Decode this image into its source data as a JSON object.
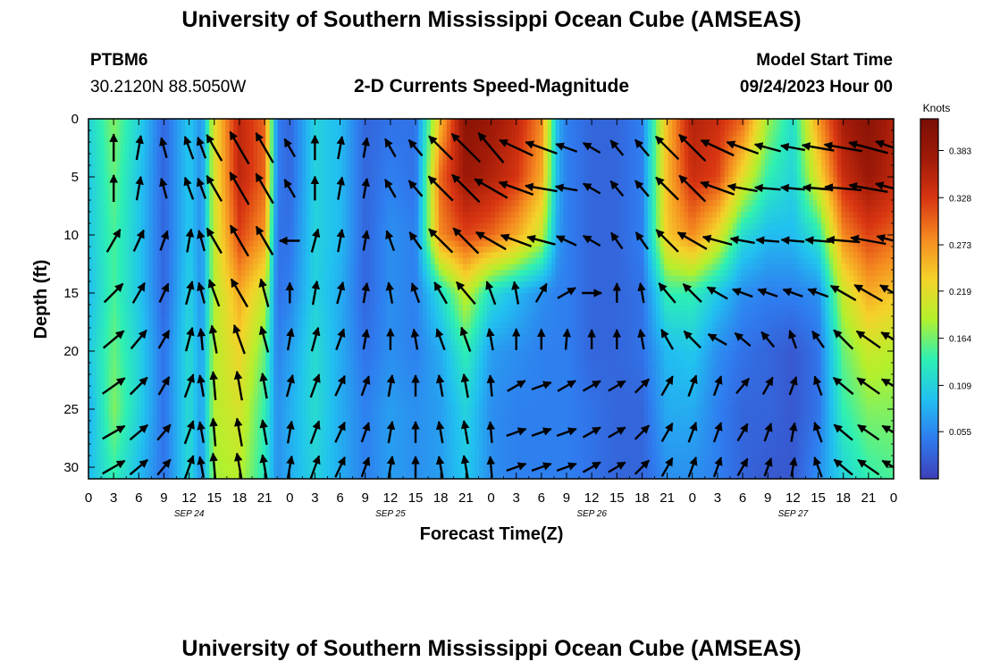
{
  "header": {
    "title": "University of Southern Mississippi Ocean Cube (AMSEAS)",
    "station": "PTBM6",
    "coords": "30.2120N  88.5050W",
    "plot_title": "2-D Currents Speed-Magnitude",
    "start_label": "Model Start Time",
    "start_value": "09/24/2023 Hour 00"
  },
  "footer": {
    "title": "University of Southern Mississippi Ocean Cube (AMSEAS)"
  },
  "chart_data": {
    "type": "heatmap",
    "xlabel": "Forecast Time(Z)",
    "ylabel": "Depth (ft)",
    "xlim": [
      0,
      96
    ],
    "ylim": [
      0,
      31
    ],
    "x_ticks": [
      0,
      3,
      6,
      9,
      12,
      15,
      18,
      21,
      24,
      27,
      30,
      33,
      36,
      39,
      42,
      45,
      48,
      51,
      54,
      57,
      60,
      63,
      66,
      69,
      72,
      75,
      78,
      81,
      84,
      87,
      90,
      93,
      96
    ],
    "x_tick_labels": [
      "0",
      "3",
      "6",
      "9",
      "12",
      "15",
      "18",
      "21",
      "0",
      "3",
      "6",
      "9",
      "12",
      "15",
      "18",
      "21",
      "0",
      "3",
      "6",
      "9",
      "12",
      "15",
      "18",
      "21",
      "0",
      "3",
      "6",
      "9",
      "12",
      "15",
      "18",
      "21",
      "0"
    ],
    "date_labels": [
      {
        "x": 12,
        "label": "SEP 24"
      },
      {
        "x": 36,
        "label": "SEP 25"
      },
      {
        "x": 60,
        "label": "SEP 26"
      },
      {
        "x": 84,
        "label": "SEP 27"
      }
    ],
    "y_ticks": [
      0,
      5,
      10,
      15,
      20,
      25,
      30
    ],
    "y_tick_labels": [
      "0",
      "5",
      "10",
      "15",
      "20",
      "25",
      "30"
    ],
    "colorbar": {
      "label": "Knots",
      "min": 0,
      "max": 0.42,
      "ticks": [
        0.055,
        0.109,
        0.164,
        0.219,
        0.273,
        0.328,
        0.383
      ],
      "tick_labels": [
        "0.055",
        "0.109",
        "0.164",
        "0.219",
        "0.273",
        "0.328",
        "0.383"
      ],
      "colors": [
        "#3e3fb8",
        "#2f7bef",
        "#21c1f0",
        "#2ef0b3",
        "#b4f02c",
        "#f5d22a",
        "#f58a20",
        "#d93612",
        "#a01a08",
        "#7a0e05"
      ]
    },
    "speed_profile": {
      "times": [
        0,
        3,
        6,
        9,
        12,
        13.5,
        15,
        18,
        21,
        22.5,
        24,
        27,
        30,
        33,
        36,
        39,
        42,
        45,
        48,
        51,
        54,
        56,
        57,
        60,
        63,
        66,
        69,
        72,
        75,
        78,
        81,
        84,
        87,
        90,
        93,
        96
      ],
      "depths": [
        0,
        5,
        10,
        15,
        20,
        25,
        31
      ],
      "values": [
        [
          0.11,
          0.1,
          0.1,
          0.09,
          0.1,
          0.08,
          0.09
        ],
        [
          0.17,
          0.16,
          0.15,
          0.15,
          0.16,
          0.17,
          0.14
        ],
        [
          0.11,
          0.1,
          0.1,
          0.1,
          0.11,
          0.11,
          0.09
        ],
        [
          0.03,
          0.03,
          0.03,
          0.03,
          0.04,
          0.04,
          0.04
        ],
        [
          0.1,
          0.1,
          0.1,
          0.11,
          0.12,
          0.12,
          0.12
        ],
        [
          0.06,
          0.06,
          0.06,
          0.06,
          0.07,
          0.07,
          0.06
        ],
        [
          0.22,
          0.21,
          0.2,
          0.19,
          0.19,
          0.19,
          0.18
        ],
        [
          0.35,
          0.35,
          0.32,
          0.26,
          0.23,
          0.21,
          0.19
        ],
        [
          0.3,
          0.3,
          0.27,
          0.2,
          0.16,
          0.14,
          0.13
        ],
        [
          0.05,
          0.05,
          0.04,
          0.04,
          0.05,
          0.06,
          0.06
        ],
        [
          0.03,
          0.03,
          0.04,
          0.05,
          0.07,
          0.08,
          0.08
        ],
        [
          0.11,
          0.11,
          0.11,
          0.11,
          0.12,
          0.12,
          0.11
        ],
        [
          0.09,
          0.09,
          0.09,
          0.08,
          0.08,
          0.08,
          0.08
        ],
        [
          0.03,
          0.03,
          0.03,
          0.03,
          0.04,
          0.05,
          0.05
        ],
        [
          0.04,
          0.05,
          0.06,
          0.06,
          0.06,
          0.07,
          0.07
        ],
        [
          0.04,
          0.04,
          0.05,
          0.05,
          0.05,
          0.06,
          0.06
        ],
        [
          0.25,
          0.3,
          0.28,
          0.12,
          0.08,
          0.07,
          0.07
        ],
        [
          0.4,
          0.38,
          0.32,
          0.2,
          0.14,
          0.11,
          0.1
        ],
        [
          0.38,
          0.36,
          0.3,
          0.12,
          0.07,
          0.06,
          0.06
        ],
        [
          0.35,
          0.33,
          0.26,
          0.09,
          0.06,
          0.05,
          0.05
        ],
        [
          0.28,
          0.26,
          0.2,
          0.06,
          0.05,
          0.05,
          0.05
        ],
        [
          0.08,
          0.08,
          0.07,
          0.05,
          0.05,
          0.05,
          0.05
        ],
        [
          0.05,
          0.05,
          0.05,
          0.05,
          0.05,
          0.05,
          0.05
        ],
        [
          0.03,
          0.03,
          0.03,
          0.03,
          0.03,
          0.04,
          0.04
        ],
        [
          0.03,
          0.03,
          0.03,
          0.03,
          0.03,
          0.03,
          0.03
        ],
        [
          0.05,
          0.05,
          0.05,
          0.04,
          0.04,
          0.03,
          0.03
        ],
        [
          0.25,
          0.25,
          0.24,
          0.14,
          0.09,
          0.08,
          0.06
        ],
        [
          0.36,
          0.34,
          0.28,
          0.14,
          0.1,
          0.08,
          0.06
        ],
        [
          0.34,
          0.32,
          0.22,
          0.1,
          0.06,
          0.05,
          0.05
        ],
        [
          0.3,
          0.22,
          0.12,
          0.06,
          0.04,
          0.03,
          0.03
        ],
        [
          0.18,
          0.14,
          0.09,
          0.05,
          0.03,
          0.03,
          0.02
        ],
        [
          0.12,
          0.11,
          0.09,
          0.05,
          0.02,
          0.02,
          0.02
        ],
        [
          0.27,
          0.22,
          0.13,
          0.06,
          0.04,
          0.04,
          0.06
        ],
        [
          0.37,
          0.34,
          0.28,
          0.2,
          0.16,
          0.14,
          0.11
        ],
        [
          0.4,
          0.38,
          0.32,
          0.26,
          0.2,
          0.17,
          0.14
        ],
        [
          0.36,
          0.35,
          0.3,
          0.24,
          0.19,
          0.17,
          0.15
        ]
      ]
    },
    "vectors": {
      "times": [
        3,
        6,
        9,
        12,
        13.5,
        15,
        18,
        21,
        24,
        27,
        30,
        33,
        36,
        39,
        42,
        45,
        48,
        51,
        54,
        57,
        60,
        63,
        66,
        69,
        72,
        75,
        78,
        81,
        84,
        87,
        90,
        93,
        96
      ],
      "depths": [
        2.5,
        6,
        10.5,
        15,
        19,
        23,
        27,
        30
      ],
      "directions_deg": [
        [
          0,
          10,
          -15,
          -20,
          -20,
          -30,
          -30,
          -30,
          -30,
          0,
          10,
          10,
          -30,
          -40,
          -45,
          -45,
          -40,
          -65,
          -70,
          -70,
          -60,
          -40,
          -40,
          -45,
          -45,
          -65,
          -70,
          -75,
          -80,
          -80,
          -80,
          -75,
          -70
        ],
        [
          0,
          10,
          -15,
          -20,
          -20,
          -30,
          -30,
          -30,
          -30,
          0,
          10,
          10,
          -30,
          -40,
          -45,
          -45,
          -60,
          -70,
          -80,
          -80,
          -60,
          -40,
          -40,
          -45,
          -45,
          -70,
          -80,
          -85,
          -85,
          -85,
          -85,
          -80,
          -75
        ],
        [
          30,
          25,
          20,
          10,
          -15,
          -30,
          -30,
          -30,
          -90,
          15,
          10,
          10,
          -20,
          -35,
          -45,
          -45,
          -60,
          -70,
          -75,
          -65,
          -60,
          -35,
          -35,
          -45,
          -60,
          -75,
          -80,
          -85,
          -85,
          -85,
          -85,
          -80,
          -75
        ],
        [
          45,
          30,
          25,
          15,
          -15,
          -20,
          -30,
          -15,
          0,
          10,
          15,
          10,
          -10,
          -20,
          -30,
          -40,
          -20,
          -10,
          30,
          60,
          90,
          0,
          -10,
          -40,
          -45,
          -60,
          -70,
          -70,
          -70,
          -70,
          -60,
          -60,
          -60
        ],
        [
          50,
          40,
          30,
          15,
          -5,
          -10,
          -20,
          -15,
          10,
          15,
          20,
          10,
          0,
          -10,
          -20,
          -20,
          -10,
          0,
          0,
          5,
          0,
          0,
          -10,
          -30,
          -45,
          -60,
          -50,
          -40,
          -20,
          -35,
          -45,
          -55,
          -60
        ],
        [
          55,
          45,
          30,
          20,
          -10,
          -5,
          -10,
          -10,
          15,
          20,
          25,
          20,
          10,
          0,
          -10,
          -10,
          -5,
          60,
          70,
          60,
          60,
          60,
          45,
          30,
          20,
          20,
          40,
          30,
          20,
          -20,
          -50,
          -55,
          -60
        ],
        [
          60,
          50,
          40,
          20,
          -10,
          -5,
          -10,
          -10,
          10,
          20,
          25,
          20,
          10,
          0,
          -10,
          -10,
          -5,
          70,
          70,
          70,
          60,
          60,
          45,
          30,
          20,
          20,
          30,
          20,
          10,
          -20,
          -50,
          -55,
          -60
        ],
        [
          60,
          50,
          40,
          20,
          -10,
          -5,
          -10,
          -10,
          10,
          20,
          25,
          20,
          10,
          0,
          -10,
          -10,
          -5,
          70,
          70,
          70,
          60,
          60,
          45,
          30,
          20,
          20,
          30,
          20,
          10,
          -20,
          -50,
          -55,
          -60
        ]
      ],
      "magnitudes": [
        [
          0.17,
          0.12,
          0.05,
          0.11,
          0.08,
          0.22,
          0.35,
          0.3,
          0.05,
          0.12,
          0.09,
          0.04,
          0.05,
          0.05,
          0.28,
          0.4,
          0.38,
          0.34,
          0.28,
          0.08,
          0.03,
          0.03,
          0.06,
          0.26,
          0.35,
          0.33,
          0.28,
          0.16,
          0.12,
          0.26,
          0.37,
          0.4,
          0.36
        ],
        [
          0.16,
          0.11,
          0.05,
          0.1,
          0.07,
          0.21,
          0.35,
          0.3,
          0.05,
          0.11,
          0.09,
          0.04,
          0.05,
          0.05,
          0.3,
          0.38,
          0.36,
          0.33,
          0.26,
          0.08,
          0.03,
          0.03,
          0.05,
          0.25,
          0.34,
          0.32,
          0.22,
          0.14,
          0.11,
          0.22,
          0.34,
          0.38,
          0.35
        ],
        [
          0.15,
          0.1,
          0.05,
          0.1,
          0.06,
          0.2,
          0.32,
          0.27,
          0.04,
          0.11,
          0.09,
          0.04,
          0.06,
          0.05,
          0.28,
          0.32,
          0.3,
          0.26,
          0.2,
          0.07,
          0.03,
          0.03,
          0.05,
          0.24,
          0.28,
          0.22,
          0.12,
          0.09,
          0.09,
          0.13,
          0.28,
          0.32,
          0.3
        ],
        [
          0.15,
          0.1,
          0.05,
          0.11,
          0.06,
          0.19,
          0.26,
          0.2,
          0.05,
          0.11,
          0.08,
          0.04,
          0.06,
          0.05,
          0.12,
          0.2,
          0.12,
          0.09,
          0.06,
          0.05,
          0.03,
          0.03,
          0.04,
          0.14,
          0.14,
          0.1,
          0.06,
          0.05,
          0.05,
          0.06,
          0.2,
          0.26,
          0.24
        ],
        [
          0.16,
          0.11,
          0.05,
          0.12,
          0.07,
          0.19,
          0.23,
          0.16,
          0.07,
          0.12,
          0.08,
          0.04,
          0.06,
          0.05,
          0.08,
          0.14,
          0.07,
          0.06,
          0.05,
          0.05,
          0.03,
          0.03,
          0.04,
          0.09,
          0.1,
          0.06,
          0.04,
          0.03,
          0.02,
          0.04,
          0.16,
          0.2,
          0.19
        ],
        [
          0.17,
          0.11,
          0.05,
          0.12,
          0.07,
          0.19,
          0.21,
          0.14,
          0.08,
          0.12,
          0.08,
          0.05,
          0.07,
          0.06,
          0.07,
          0.11,
          0.06,
          0.05,
          0.05,
          0.05,
          0.04,
          0.03,
          0.03,
          0.08,
          0.08,
          0.05,
          0.03,
          0.03,
          0.02,
          0.04,
          0.14,
          0.17,
          0.17
        ],
        [
          0.14,
          0.09,
          0.04,
          0.12,
          0.06,
          0.18,
          0.19,
          0.13,
          0.08,
          0.11,
          0.08,
          0.05,
          0.07,
          0.06,
          0.07,
          0.1,
          0.06,
          0.05,
          0.05,
          0.05,
          0.04,
          0.03,
          0.03,
          0.06,
          0.06,
          0.05,
          0.03,
          0.02,
          0.02,
          0.06,
          0.11,
          0.14,
          0.15
        ],
        [
          0.14,
          0.09,
          0.04,
          0.12,
          0.06,
          0.18,
          0.19,
          0.13,
          0.08,
          0.11,
          0.08,
          0.05,
          0.07,
          0.06,
          0.07,
          0.1,
          0.06,
          0.05,
          0.05,
          0.05,
          0.04,
          0.03,
          0.03,
          0.06,
          0.06,
          0.05,
          0.03,
          0.02,
          0.02,
          0.06,
          0.11,
          0.14,
          0.15
        ]
      ]
    }
  }
}
